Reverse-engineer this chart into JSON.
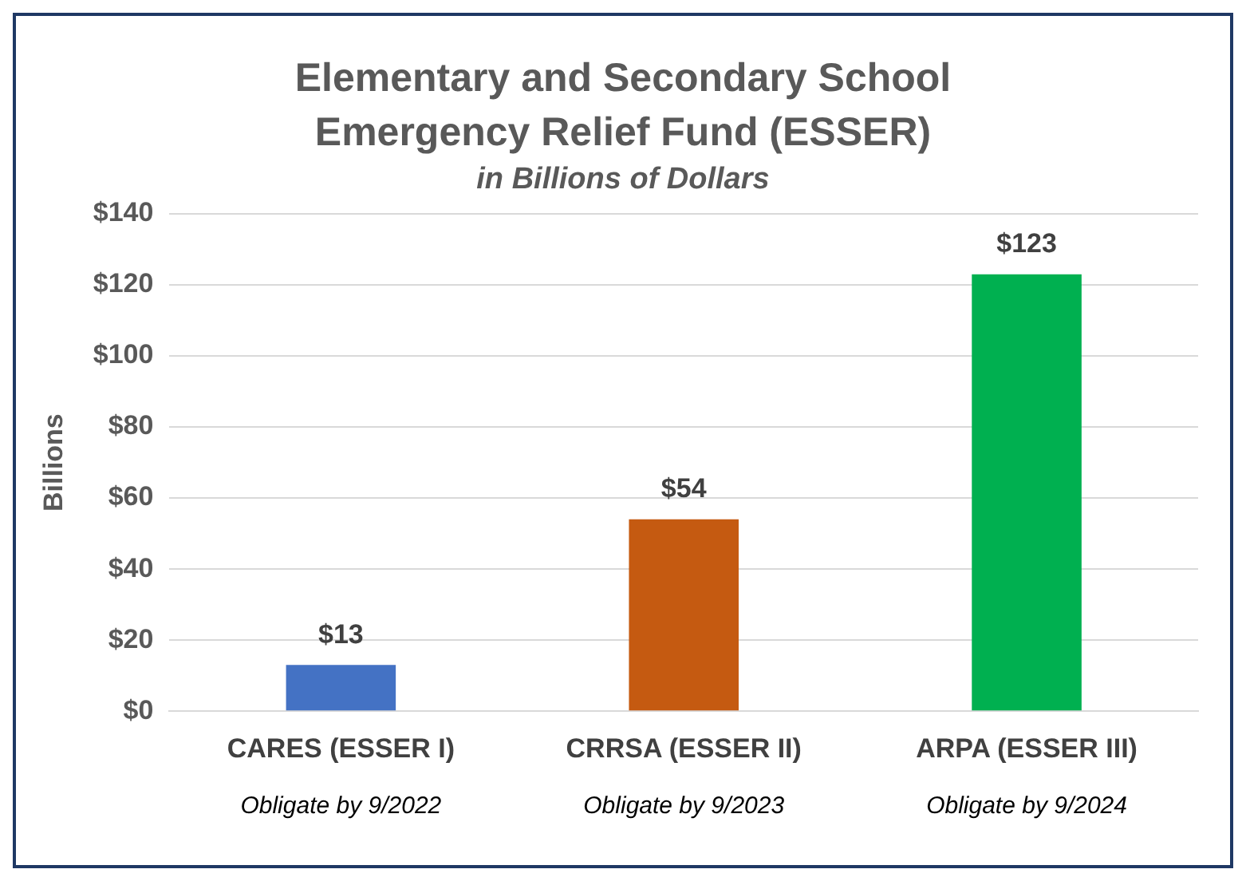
{
  "chart_data": {
    "type": "bar",
    "title": "Elementary and Secondary School Emergency Relief Fund  (ESSER)",
    "subtitle": "in Billions of Dollars",
    "ylabel": "Billions",
    "categories": [
      "CARES (ESSER I)",
      "CRRSA (ESSER II)",
      "ARPA (ESSER III)"
    ],
    "values": [
      13,
      54,
      123
    ],
    "colors": [
      "#4472c4",
      "#c55a11",
      "#00b050"
    ],
    "value_labels": [
      "$13",
      "$54",
      "$123"
    ],
    "ylim": [
      0,
      140
    ],
    "yticks": [
      {
        "value": 0,
        "label": "$0"
      },
      {
        "value": 20,
        "label": "$20"
      },
      {
        "value": 40,
        "label": "$40"
      },
      {
        "value": 60,
        "label": "$60"
      },
      {
        "value": 80,
        "label": "$80"
      },
      {
        "value": 100,
        "label": "$100"
      },
      {
        "value": 120,
        "label": "$120"
      },
      {
        "value": 140,
        "label": "$140"
      }
    ],
    "grid": "y",
    "legend": false,
    "annotations": [
      "Obligate by 9/2022",
      "Obligate by 9/2023",
      "Obligate by 9/2024"
    ]
  }
}
